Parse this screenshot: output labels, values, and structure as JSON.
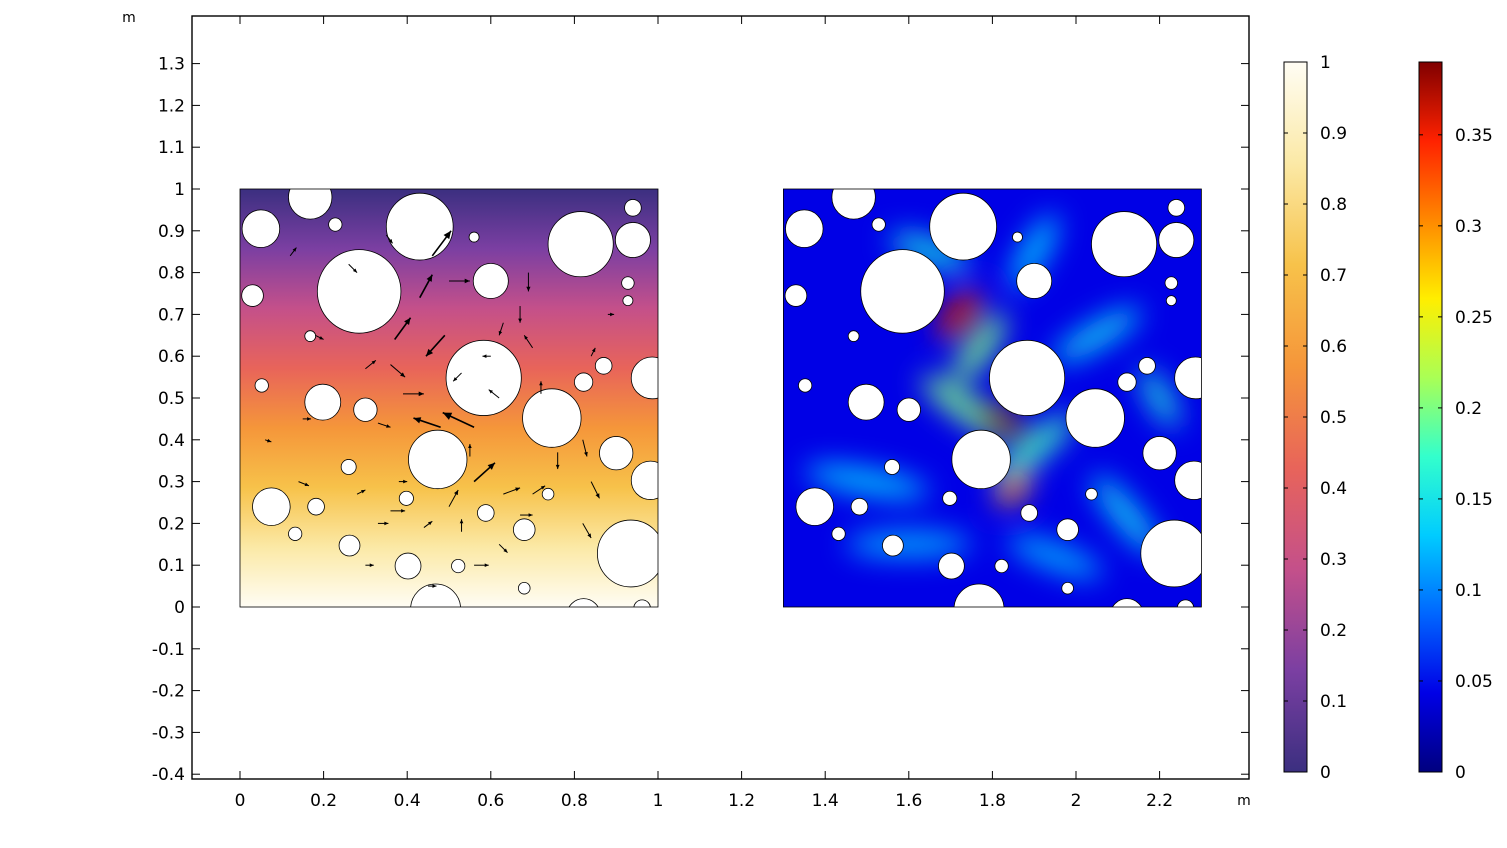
{
  "chart_data": {
    "type": "heatmap",
    "title": "",
    "axes": {
      "x": {
        "unit": "m",
        "range": [
          -0.115,
          2.41
        ],
        "ticks": [
          0,
          0.2,
          0.4,
          0.6,
          0.8,
          1,
          1.2,
          1.4,
          1.6,
          1.8,
          2,
          2.2
        ],
        "tick_labels": [
          "0",
          "0.2",
          "0.4",
          "0.6",
          "0.8",
          "1",
          "1.2",
          "1.4",
          "1.6",
          "1.8",
          "2",
          "2.2"
        ]
      },
      "y": {
        "unit": "m",
        "range": [
          -0.41,
          1.4
        ],
        "ticks": [
          -0.4,
          -0.3,
          -0.2,
          -0.1,
          0,
          0.1,
          0.2,
          0.3,
          0.4,
          0.5,
          0.6,
          0.7,
          0.8,
          0.9,
          1,
          1.1,
          1.2,
          1.3
        ],
        "tick_labels": [
          "-0.4",
          "-0.3",
          "-0.2",
          "-0.1",
          "0",
          "0.1",
          "0.2",
          "0.3",
          "0.4",
          "0.5",
          "0.6",
          "0.7",
          "0.8",
          "0.9",
          "1",
          "1.1",
          "1.2",
          "1.3"
        ]
      },
      "grid": false
    },
    "domains": [
      {
        "name": "left-domain",
        "x_range": [
          0,
          1
        ],
        "y_range": [
          0,
          1
        ],
        "colormap": "thermal-purple-orange-yellow-white",
        "field": "top-to-bottom gradient 0..1"
      },
      {
        "name": "right-domain",
        "x_range": [
          1.3,
          2.3
        ],
        "y_range": [
          0,
          1
        ],
        "colormap": "rainbow-jet",
        "field": "magnitude 0..0.39"
      }
    ],
    "holes": [
      {
        "x": 0.05,
        "y": 0.905,
        "r": 0.045
      },
      {
        "x": 0.168,
        "y": 0.98,
        "r": 0.052
      },
      {
        "x": 0.228,
        "y": 0.915,
        "r": 0.016
      },
      {
        "x": 0.43,
        "y": 0.91,
        "r": 0.08
      },
      {
        "x": 0.56,
        "y": 0.885,
        "r": 0.012
      },
      {
        "x": 0.815,
        "y": 0.868,
        "r": 0.078
      },
      {
        "x": 0.94,
        "y": 0.955,
        "r": 0.02
      },
      {
        "x": 0.94,
        "y": 0.878,
        "r": 0.042
      },
      {
        "x": 0.03,
        "y": 0.745,
        "r": 0.026
      },
      {
        "x": 0.285,
        "y": 0.755,
        "r": 0.1
      },
      {
        "x": 0.6,
        "y": 0.78,
        "r": 0.042
      },
      {
        "x": 0.928,
        "y": 0.775,
        "r": 0.015
      },
      {
        "x": 0.928,
        "y": 0.733,
        "r": 0.012
      },
      {
        "x": 0.168,
        "y": 0.648,
        "r": 0.013
      },
      {
        "x": 0.583,
        "y": 0.548,
        "r": 0.09
      },
      {
        "x": 0.87,
        "y": 0.577,
        "r": 0.02
      },
      {
        "x": 0.822,
        "y": 0.538,
        "r": 0.022
      },
      {
        "x": 0.052,
        "y": 0.53,
        "r": 0.016
      },
      {
        "x": 0.986,
        "y": 0.548,
        "r": 0.05
      },
      {
        "x": 0.198,
        "y": 0.49,
        "r": 0.043
      },
      {
        "x": 0.3,
        "y": 0.472,
        "r": 0.028
      },
      {
        "x": 0.746,
        "y": 0.452,
        "r": 0.07
      },
      {
        "x": 0.473,
        "y": 0.353,
        "r": 0.07
      },
      {
        "x": 0.9,
        "y": 0.368,
        "r": 0.04
      },
      {
        "x": 0.26,
        "y": 0.335,
        "r": 0.018
      },
      {
        "x": 0.982,
        "y": 0.303,
        "r": 0.046
      },
      {
        "x": 0.075,
        "y": 0.24,
        "r": 0.045
      },
      {
        "x": 0.182,
        "y": 0.24,
        "r": 0.02
      },
      {
        "x": 0.398,
        "y": 0.26,
        "r": 0.017
      },
      {
        "x": 0.737,
        "y": 0.27,
        "r": 0.014
      },
      {
        "x": 0.588,
        "y": 0.225,
        "r": 0.02
      },
      {
        "x": 0.68,
        "y": 0.185,
        "r": 0.026
      },
      {
        "x": 0.132,
        "y": 0.175,
        "r": 0.016
      },
      {
        "x": 0.262,
        "y": 0.147,
        "r": 0.025
      },
      {
        "x": 0.935,
        "y": 0.128,
        "r": 0.08
      },
      {
        "x": 0.402,
        "y": 0.098,
        "r": 0.031
      },
      {
        "x": 0.522,
        "y": 0.098,
        "r": 0.016
      },
      {
        "x": 0.68,
        "y": 0.045,
        "r": 0.014
      },
      {
        "x": 0.468,
        "y": -0.005,
        "r": 0.06
      },
      {
        "x": 0.822,
        "y": -0.02,
        "r": 0.04
      },
      {
        "x": 0.962,
        "y": -0.003,
        "r": 0.02
      }
    ],
    "hotspots": [
      {
        "x": 0.42,
        "y": 0.7,
        "rx": 0.07,
        "ry": 0.025,
        "angle": -50,
        "intensity": 0.34
      },
      {
        "x": 0.52,
        "y": 0.445,
        "rx": 0.07,
        "ry": 0.025,
        "angle": 30,
        "intensity": 0.39
      },
      {
        "x": 0.55,
        "y": 0.28,
        "rx": 0.05,
        "ry": 0.02,
        "angle": -40,
        "intensity": 0.28
      },
      {
        "x": 0.47,
        "y": 0.62,
        "rx": 0.1,
        "ry": 0.03,
        "angle": -55,
        "intensity": 0.2
      },
      {
        "x": 0.43,
        "y": 0.48,
        "rx": 0.12,
        "ry": 0.03,
        "angle": 35,
        "intensity": 0.2
      },
      {
        "x": 0.6,
        "y": 0.38,
        "rx": 0.12,
        "ry": 0.03,
        "angle": -40,
        "intensity": 0.18
      },
      {
        "x": 0.35,
        "y": 0.85,
        "rx": 0.1,
        "ry": 0.03,
        "angle": 20,
        "intensity": 0.15
      },
      {
        "x": 0.75,
        "y": 0.65,
        "rx": 0.12,
        "ry": 0.03,
        "angle": -30,
        "intensity": 0.14
      },
      {
        "x": 0.2,
        "y": 0.3,
        "rx": 0.15,
        "ry": 0.03,
        "angle": 10,
        "intensity": 0.13
      },
      {
        "x": 0.82,
        "y": 0.22,
        "rx": 0.12,
        "ry": 0.03,
        "angle": 50,
        "intensity": 0.14
      },
      {
        "x": 0.3,
        "y": 0.15,
        "rx": 0.15,
        "ry": 0.03,
        "angle": 0,
        "intensity": 0.12
      },
      {
        "x": 0.65,
        "y": 0.12,
        "rx": 0.12,
        "ry": 0.03,
        "angle": 20,
        "intensity": 0.12
      },
      {
        "x": 0.9,
        "y": 0.5,
        "rx": 0.08,
        "ry": 0.025,
        "angle": 60,
        "intensity": 0.16
      },
      {
        "x": 0.6,
        "y": 0.85,
        "rx": 0.1,
        "ry": 0.03,
        "angle": -60,
        "intensity": 0.13
      }
    ],
    "arrows": [
      {
        "x": 0.46,
        "y": 0.84,
        "dx": 0.045,
        "dy": 0.06
      },
      {
        "x": 0.5,
        "y": 0.78,
        "dx": 0.05,
        "dy": 0.0
      },
      {
        "x": 0.43,
        "y": 0.74,
        "dx": 0.03,
        "dy": 0.055
      },
      {
        "x": 0.37,
        "y": 0.64,
        "dx": 0.038,
        "dy": 0.052
      },
      {
        "x": 0.49,
        "y": 0.65,
        "dx": -0.045,
        "dy": -0.05
      },
      {
        "x": 0.36,
        "y": 0.58,
        "dx": 0.035,
        "dy": -0.03
      },
      {
        "x": 0.39,
        "y": 0.51,
        "dx": 0.05,
        "dy": 0.0
      },
      {
        "x": 0.56,
        "y": 0.43,
        "dx": -0.075,
        "dy": 0.035
      },
      {
        "x": 0.48,
        "y": 0.43,
        "dx": -0.065,
        "dy": 0.022
      },
      {
        "x": 0.56,
        "y": 0.3,
        "dx": 0.05,
        "dy": 0.045
      },
      {
        "x": 0.5,
        "y": 0.24,
        "dx": 0.022,
        "dy": 0.04
      },
      {
        "x": 0.36,
        "y": 0.23,
        "dx": 0.035,
        "dy": 0.0
      },
      {
        "x": 0.3,
        "y": 0.57,
        "dx": 0.025,
        "dy": 0.02
      },
      {
        "x": 0.53,
        "y": 0.56,
        "dx": -0.02,
        "dy": -0.02
      },
      {
        "x": 0.62,
        "y": 0.5,
        "dx": -0.025,
        "dy": 0.02
      },
      {
        "x": 0.7,
        "y": 0.62,
        "dx": -0.02,
        "dy": 0.03
      },
      {
        "x": 0.69,
        "y": 0.8,
        "dx": 0.0,
        "dy": -0.045
      },
      {
        "x": 0.67,
        "y": 0.72,
        "dx": 0.0,
        "dy": -0.04
      },
      {
        "x": 0.63,
        "y": 0.68,
        "dx": -0.01,
        "dy": -0.03
      },
      {
        "x": 0.33,
        "y": 0.44,
        "dx": 0.03,
        "dy": -0.01
      },
      {
        "x": 0.63,
        "y": 0.27,
        "dx": 0.04,
        "dy": 0.015
      },
      {
        "x": 0.7,
        "y": 0.27,
        "dx": 0.03,
        "dy": 0.02
      },
      {
        "x": 0.67,
        "y": 0.22,
        "dx": 0.03,
        "dy": 0.0
      },
      {
        "x": 0.76,
        "y": 0.37,
        "dx": 0.0,
        "dy": -0.04
      },
      {
        "x": 0.82,
        "y": 0.4,
        "dx": 0.01,
        "dy": -0.04
      },
      {
        "x": 0.84,
        "y": 0.3,
        "dx": 0.02,
        "dy": -0.04
      },
      {
        "x": 0.82,
        "y": 0.2,
        "dx": 0.02,
        "dy": -0.035
      },
      {
        "x": 0.56,
        "y": 0.1,
        "dx": 0.035,
        "dy": 0.0
      },
      {
        "x": 0.62,
        "y": 0.15,
        "dx": 0.02,
        "dy": -0.02
      },
      {
        "x": 0.33,
        "y": 0.2,
        "dx": 0.025,
        "dy": 0.0
      },
      {
        "x": 0.28,
        "y": 0.27,
        "dx": 0.02,
        "dy": 0.01
      },
      {
        "x": 0.14,
        "y": 0.3,
        "dx": 0.025,
        "dy": -0.01
      },
      {
        "x": 0.3,
        "y": 0.1,
        "dx": 0.02,
        "dy": 0.0
      },
      {
        "x": 0.26,
        "y": 0.82,
        "dx": 0.02,
        "dy": -0.02
      },
      {
        "x": 0.12,
        "y": 0.84,
        "dx": 0.015,
        "dy": 0.02
      },
      {
        "x": 0.18,
        "y": 0.65,
        "dx": 0.02,
        "dy": -0.01
      },
      {
        "x": 0.35,
        "y": 0.89,
        "dx": 0.015,
        "dy": -0.02
      },
      {
        "x": 0.15,
        "y": 0.45,
        "dx": 0.02,
        "dy": 0.0
      },
      {
        "x": 0.06,
        "y": 0.4,
        "dx": 0.015,
        "dy": -0.005
      },
      {
        "x": 0.38,
        "y": 0.3,
        "dx": 0.02,
        "dy": 0.0
      },
      {
        "x": 0.44,
        "y": 0.19,
        "dx": 0.02,
        "dy": 0.015
      },
      {
        "x": 0.55,
        "y": 0.36,
        "dx": 0.0,
        "dy": 0.03
      },
      {
        "x": 0.6,
        "y": 0.6,
        "dx": -0.02,
        "dy": 0.0
      },
      {
        "x": 0.72,
        "y": 0.51,
        "dx": 0.0,
        "dy": 0.03
      },
      {
        "x": 0.84,
        "y": 0.6,
        "dx": 0.01,
        "dy": 0.02
      },
      {
        "x": 0.88,
        "y": 0.7,
        "dx": 0.015,
        "dy": 0.0
      },
      {
        "x": 0.53,
        "y": 0.18,
        "dx": 0.0,
        "dy": 0.03
      },
      {
        "x": 0.45,
        "y": 0.05,
        "dx": 0.02,
        "dy": 0.0
      }
    ],
    "colorbars": [
      {
        "name": "temperature-colorbar",
        "colormap": "thermal",
        "min": 0,
        "max": 1,
        "ticks": [
          0,
          0.1,
          0.2,
          0.3,
          0.4,
          0.5,
          0.6,
          0.7,
          0.8,
          0.9,
          1
        ],
        "tick_labels": [
          "0",
          "0.1",
          "0.2",
          "0.3",
          "0.4",
          "0.5",
          "0.6",
          "0.7",
          "0.8",
          "0.9",
          "1"
        ]
      },
      {
        "name": "magnitude-colorbar",
        "colormap": "rainbow",
        "min": 0,
        "max": 0.39,
        "ticks": [
          0,
          0.05,
          0.1,
          0.15,
          0.2,
          0.25,
          0.3,
          0.35
        ],
        "tick_labels": [
          "0",
          "0.05",
          "0.1",
          "0.15",
          "0.2",
          "0.25",
          "0.3",
          "0.35"
        ]
      }
    ],
    "colors": {
      "thermal": [
        "#3b2f80",
        "#7b3fa2",
        "#c4508a",
        "#e8645a",
        "#f5963a",
        "#f7c24a",
        "#fbe9a6",
        "#fffdf4"
      ],
      "rainbow": [
        "#00007f",
        "#0000e6",
        "#0066ff",
        "#00ccff",
        "#33ffcc",
        "#aaff55",
        "#ffee00",
        "#ff8800",
        "#ff2200",
        "#800000"
      ]
    }
  }
}
